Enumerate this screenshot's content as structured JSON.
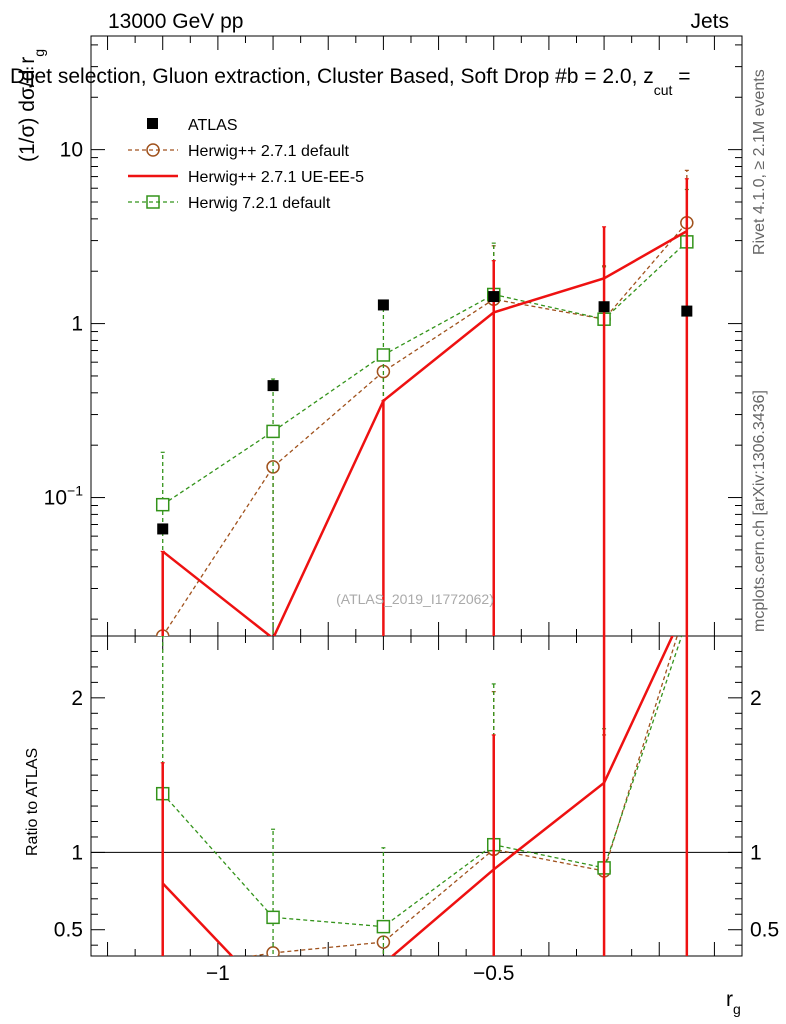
{
  "header": {
    "left": "13000 GeV pp",
    "right": "Jets",
    "title": "Dijet selection, Gluon extraction, Cluster Based, Soft Drop #b = 2.0, z",
    "title_sub": "cut",
    "title_tail": " ="
  },
  "side_labels": {
    "rivet": "Rivet 4.1.0, ≥ 2.1M events",
    "mcplots": "mcplots.cern.ch [arXiv:1306.3436]"
  },
  "watermark": "(ATLAS_2019_I1772062)",
  "main_ylabel": "(1/σ) dσ/d r",
  "main_ylabel_sub": "g",
  "ratio_ylabel": "Ratio to ATLAS",
  "xlabel": "r",
  "xlabel_sub": "g",
  "legend": [
    {
      "key": "atlas",
      "label": "ATLAS"
    },
    {
      "key": "h271def",
      "label": "Herwig++ 2.7.1 default"
    },
    {
      "key": "h271ue",
      "label": "Herwig++ 2.7.1 UE-EE-5"
    },
    {
      "key": "h721",
      "label": "Herwig 7.2.1 default"
    }
  ],
  "colors": {
    "atlas": "#000000",
    "h271def": "#a0521d",
    "h271ue": "#ee1111",
    "h721": "#33931a"
  },
  "chart_data": {
    "type": "scatter",
    "x": [
      -1.1,
      -0.9,
      -0.7,
      -0.5,
      -0.3,
      -0.15
    ],
    "xlim": [
      -1.23,
      -0.05
    ],
    "xticks": [
      -1.0,
      -0.5
    ],
    "xtick_labels": [
      "−1",
      "−0.5"
    ],
    "main": {
      "yscale": "log",
      "ylim": [
        0.016,
        45
      ],
      "yticks": [
        0.1,
        1,
        10
      ],
      "ytick_labels": [
        "10^-1",
        "1",
        "10"
      ]
    },
    "ratio": {
      "ylim": [
        0.33,
        2.4
      ],
      "yticks": [
        0.5,
        1,
        2
      ],
      "ytick_labels": [
        "0.5",
        "1",
        "2"
      ]
    },
    "series": [
      {
        "key": "atlas",
        "name": "ATLAS",
        "values": [
          0.066,
          0.44,
          1.28,
          1.43,
          1.25,
          1.18
        ],
        "ratio": [
          1,
          1,
          1,
          1,
          1,
          1
        ]
      },
      {
        "key": "h271def",
        "name": "Herwig++ 2.7.1 default",
        "values": [
          0.016,
          0.15,
          0.53,
          1.38,
          1.06,
          3.8
        ],
        "err_hi": [
          0.016,
          0.15,
          0.53,
          2.8,
          2.15,
          7.6
        ],
        "ratio": [
          0.24,
          0.35,
          0.42,
          1.02,
          0.88,
          2.6
        ],
        "ratio_err_hi": [
          0.24,
          0.35,
          0.42,
          2.04,
          1.76,
          2.6
        ]
      },
      {
        "key": "h271ue",
        "name": "Herwig++ 2.7.1 UE-EE-5",
        "values": [
          0.049,
          0.0155,
          0.36,
          1.16,
          1.82,
          3.4
        ],
        "err_hi": [
          0.049,
          0.0155,
          0.36,
          2.3,
          3.6,
          6.8
        ],
        "ratio": [
          0.8,
          0.05,
          0.28,
          0.89,
          1.45,
          2.6
        ],
        "ratio_err_hi": [
          1.58,
          0.05,
          0.28,
          1.76,
          2.6,
          2.6
        ]
      },
      {
        "key": "h721",
        "name": "Herwig 7.2.1 default",
        "values": [
          0.091,
          0.24,
          0.66,
          1.47,
          1.06,
          2.95
        ],
        "err_hi": [
          0.182,
          0.48,
          1.3,
          2.9,
          2.12,
          5.9
        ],
        "ratio": [
          1.38,
          0.58,
          0.52,
          1.05,
          0.9,
          2.5
        ],
        "ratio_err_hi": [
          2.4,
          1.15,
          1.03,
          2.09,
          1.8,
          2.6
        ]
      }
    ]
  }
}
